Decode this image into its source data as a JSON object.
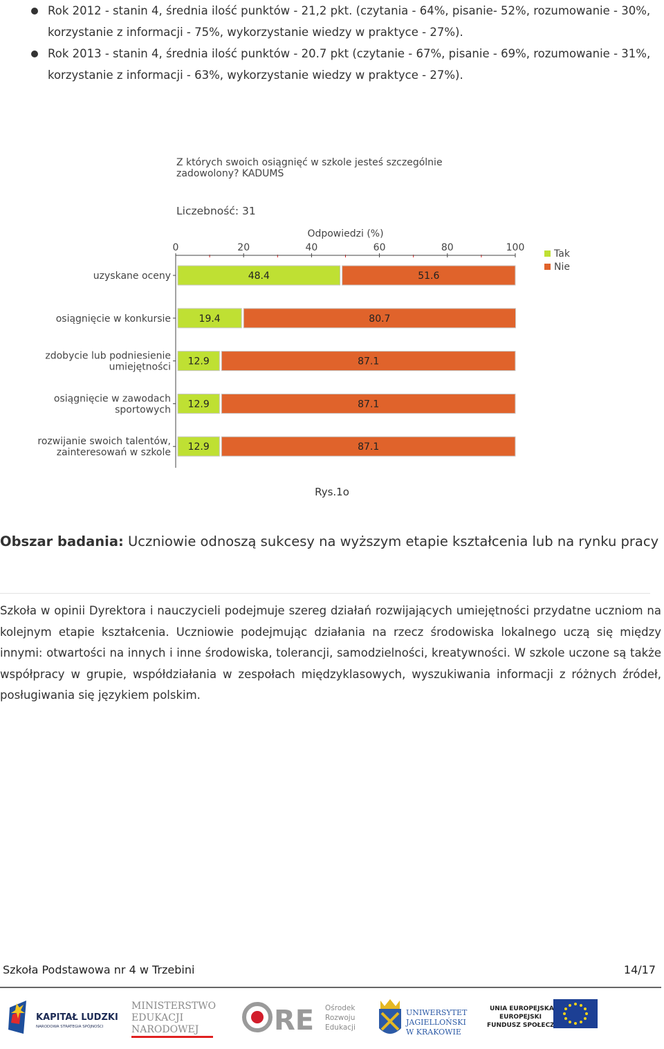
{
  "bullets": [
    "Rok 2012 - stanin 4, średnia ilość punktów - 21,2 pkt. (czytania - 64%, pisanie- 52%, rozumowanie - 30%, korzystanie z informacji - 75%, wykorzystanie wiedzy w praktyce - 27%).",
    "Rok 2013 - stanin 4, średnia ilość punktów - 20.7 pkt (czytanie - 67%, pisanie - 69%, rozumowanie - 31%, korzystanie z informacji - 63%, wykorzystanie wiedzy w praktyce - 27%)."
  ],
  "chart_data": {
    "type": "bar",
    "orientation": "horizontal-stacked",
    "title": [
      "Z których swoich osiągnięć w szkole jesteś szczególnie",
      "zadowolony? KADUMS"
    ],
    "count_label": "Liczebność: 31",
    "xlabel": "Odpowiedzi (%)",
    "xlim": [
      0,
      100
    ],
    "xticks": [
      "0",
      "20",
      "40",
      "60",
      "80",
      "100"
    ],
    "categories": [
      [
        "uzyskane oceny"
      ],
      [
        "osiągnięcie w konkursie"
      ],
      [
        "zdobycie lub podniesienie",
        "umiejętności"
      ],
      [
        "osiągnięcie w zawodach",
        "sportowych"
      ],
      [
        "rozwijanie swoich talentów,",
        "zainteresowań w szkole"
      ]
    ],
    "series": [
      {
        "name": "Tak",
        "color": "#bfe033",
        "values": [
          48.4,
          19.4,
          12.9,
          12.9,
          12.9
        ]
      },
      {
        "name": "Nie",
        "color": "#e0632b",
        "values": [
          51.6,
          80.7,
          87.1,
          87.1,
          87.1
        ]
      }
    ],
    "legend": "top-right"
  },
  "caption": "Rys.1o",
  "area": {
    "label": "Obszar badania:",
    "text": "Uczniowie odnoszą sukcesy na wyższym etapie kształcenia lub na rynku pracy"
  },
  "paragraph": "Szkoła w opinii Dyrektora i nauczycieli podejmuje szereg działań rozwijających umiejętności przydatne uczniom na kolejnym etapie kształcenia. Uczniowie podejmując działania na rzecz środowiska lokalnego uczą się między innymi: otwartości na innych i inne środowiska, tolerancji, samodzielności, kreatywności. W szkole uczone są także współpracy w grupie, współdziałania w zespołach międzyklasowych, wyszukiwania informacji z różnych źródeł, posługiwania się językiem polskim.",
  "footer": {
    "school": "Szkoła Podstawowa nr 4 w Trzebini",
    "page": "14/17"
  },
  "logos": {
    "kapital": [
      "KAPITAŁ LUDZKI",
      "NARODOWA STRATEGIA SPÓJNOŚCI"
    ],
    "ministry": [
      "MINISTERSTWO",
      "EDUKACJI",
      "NARODOWEJ"
    ],
    "ore": [
      "Ośrodek",
      "Rozwoju",
      "Edukacji"
    ],
    "uj": [
      "UNIWERSYTET",
      "JAGIELLOŃSKI",
      "W KRAKOWIE"
    ],
    "eu": [
      "UNIA EUROPEJSKA",
      "EUROPEJSKI",
      "FUNDUSZ SPOŁECZNY"
    ]
  }
}
